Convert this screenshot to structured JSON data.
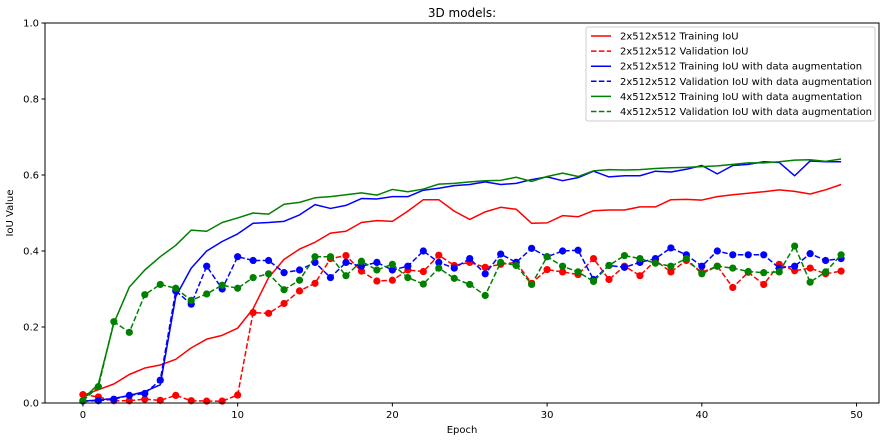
{
  "chart_data": {
    "type": "line",
    "title": "3D models:",
    "xlabel": "Epoch",
    "ylabel": "IoU Value",
    "xlim": [
      -2.45,
      51.45
    ],
    "ylim": [
      0,
      1.0
    ],
    "xticks": [
      "0",
      "10",
      "20",
      "30",
      "40",
      "50"
    ],
    "yticks": [
      "0.0",
      "0.2",
      "0.4",
      "0.6",
      "0.8",
      "1.0"
    ],
    "grid": false,
    "legend_position": "upper-right",
    "x": [
      0,
      1,
      2,
      3,
      4,
      5,
      6,
      7,
      8,
      9,
      10,
      11,
      12,
      13,
      14,
      15,
      16,
      17,
      18,
      19,
      20,
      21,
      22,
      23,
      24,
      25,
      26,
      27,
      28,
      29,
      30,
      31,
      32,
      33,
      34,
      35,
      36,
      37,
      38,
      39,
      40,
      41,
      42,
      43,
      44,
      45,
      46,
      47,
      48,
      49
    ],
    "series": [
      {
        "name": "2x512x512 Training IoU",
        "color": "#ff0000",
        "dash": "solid",
        "markers": false,
        "values": [
          0.02,
          0.035,
          0.05,
          0.075,
          0.092,
          0.1,
          0.115,
          0.145,
          0.168,
          0.178,
          0.197,
          0.248,
          0.33,
          0.378,
          0.405,
          0.423,
          0.447,
          0.452,
          0.475,
          0.48,
          0.478,
          0.505,
          0.535,
          0.535,
          0.505,
          0.483,
          0.503,
          0.515,
          0.51,
          0.473,
          0.474,
          0.493,
          0.49,
          0.506,
          0.508,
          0.508,
          0.516,
          0.516,
          0.535,
          0.536,
          0.534,
          0.543,
          0.548,
          0.552,
          0.556,
          0.561,
          0.557,
          0.55,
          0.561,
          0.575
        ]
      },
      {
        "name": "2x512x512 Validation IoU",
        "color": "#ff0000",
        "dash": "dashed",
        "markers": true,
        "values": [
          0.022,
          0.016,
          0.006,
          0.006,
          0.01,
          0.007,
          0.02,
          0.006,
          0.005,
          0.005,
          0.021,
          0.238,
          0.236,
          0.262,
          0.295,
          0.315,
          0.38,
          0.388,
          0.347,
          0.321,
          0.323,
          0.35,
          0.346,
          0.389,
          0.362,
          0.37,
          0.357,
          0.365,
          0.37,
          0.315,
          0.351,
          0.345,
          0.338,
          0.38,
          0.325,
          0.36,
          0.335,
          0.375,
          0.345,
          0.375,
          0.344,
          0.36,
          0.304,
          0.344,
          0.312,
          0.365,
          0.348,
          0.355,
          0.34,
          0.347
        ]
      },
      {
        "name": "2x512x512 Training IoU with data augmentation",
        "color": "#0000ff",
        "dash": "solid",
        "markers": false,
        "values": [
          0.005,
          0.008,
          0.012,
          0.02,
          0.03,
          0.048,
          0.28,
          0.355,
          0.4,
          0.425,
          0.445,
          0.473,
          0.475,
          0.478,
          0.495,
          0.522,
          0.512,
          0.52,
          0.538,
          0.537,
          0.543,
          0.543,
          0.56,
          0.565,
          0.572,
          0.575,
          0.582,
          0.575,
          0.578,
          0.588,
          0.595,
          0.585,
          0.593,
          0.61,
          0.595,
          0.598,
          0.598,
          0.61,
          0.608,
          0.615,
          0.625,
          0.603,
          0.625,
          0.628,
          0.635,
          0.633,
          0.598,
          0.637,
          0.635,
          0.635
        ]
      },
      {
        "name": "2x512x512 Validation IoU with data augmentation",
        "color": "#0000ff",
        "dash": "dashed",
        "markers": true,
        "values": [
          0.005,
          0.006,
          0.01,
          0.02,
          0.025,
          0.06,
          0.295,
          0.26,
          0.36,
          0.3,
          0.385,
          0.375,
          0.375,
          0.343,
          0.35,
          0.37,
          0.33,
          0.37,
          0.36,
          0.37,
          0.35,
          0.36,
          0.4,
          0.37,
          0.355,
          0.38,
          0.34,
          0.392,
          0.37,
          0.407,
          0.385,
          0.4,
          0.402,
          0.325,
          0.362,
          0.357,
          0.37,
          0.38,
          0.408,
          0.39,
          0.36,
          0.4,
          0.39,
          0.39,
          0.39,
          0.355,
          0.36,
          0.393,
          0.375,
          0.38
        ]
      },
      {
        "name": "4x512x512 Training IoU with data augmentation",
        "color": "#008000",
        "dash": "solid",
        "markers": false,
        "values": [
          0.01,
          0.05,
          0.21,
          0.305,
          0.35,
          0.385,
          0.415,
          0.455,
          0.452,
          0.475,
          0.487,
          0.5,
          0.497,
          0.523,
          0.528,
          0.54,
          0.543,
          0.548,
          0.553,
          0.547,
          0.562,
          0.556,
          0.563,
          0.576,
          0.578,
          0.582,
          0.585,
          0.586,
          0.594,
          0.583,
          0.596,
          0.605,
          0.596,
          0.611,
          0.614,
          0.613,
          0.614,
          0.617,
          0.619,
          0.62,
          0.622,
          0.624,
          0.628,
          0.632,
          0.632,
          0.635,
          0.639,
          0.64,
          0.636,
          0.642
        ]
      },
      {
        "name": "4x512x512 Validation IoU with data augmentation",
        "color": "#008000",
        "dash": "dashed",
        "markers": true,
        "values": [
          0.006,
          0.043,
          0.214,
          0.186,
          0.285,
          0.312,
          0.302,
          0.27,
          0.287,
          0.31,
          0.302,
          0.33,
          0.34,
          0.298,
          0.323,
          0.385,
          0.385,
          0.335,
          0.373,
          0.35,
          0.365,
          0.33,
          0.313,
          0.355,
          0.328,
          0.312,
          0.283,
          0.37,
          0.362,
          0.312,
          0.385,
          0.36,
          0.345,
          0.32,
          0.362,
          0.388,
          0.38,
          0.368,
          0.36,
          0.38,
          0.34,
          0.36,
          0.355,
          0.346,
          0.343,
          0.345,
          0.413,
          0.318,
          0.345,
          0.39
        ]
      }
    ]
  }
}
